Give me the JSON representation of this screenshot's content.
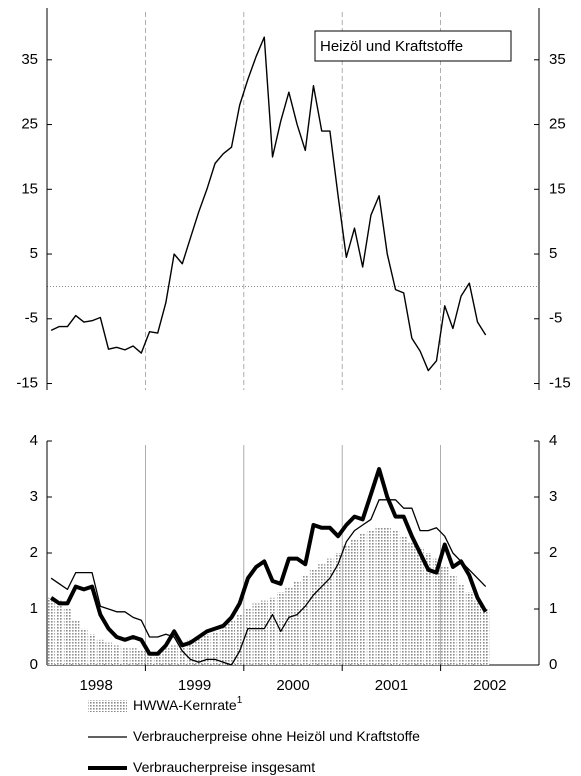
{
  "chart_data": [
    {
      "type": "line",
      "annotation": "Heizöl und Kraftstoffe",
      "x": [
        1998.042,
        1998.125,
        1998.208,
        1998.292,
        1998.375,
        1998.458,
        1998.542,
        1998.625,
        1998.708,
        1998.792,
        1998.875,
        1998.958,
        1999.042,
        1999.125,
        1999.208,
        1999.292,
        1999.375,
        1999.458,
        1999.542,
        1999.625,
        1999.708,
        1999.792,
        1999.875,
        1999.958,
        2000.042,
        2000.125,
        2000.208,
        2000.292,
        2000.375,
        2000.458,
        2000.542,
        2000.625,
        2000.708,
        2000.792,
        2000.875,
        2000.958,
        2001.042,
        2001.125,
        2001.208,
        2001.292,
        2001.375,
        2001.458,
        2001.542,
        2001.625,
        2001.708,
        2001.792,
        2001.875,
        2001.958,
        2002.042,
        2002.125,
        2002.208,
        2002.292,
        2002.375,
        2002.458
      ],
      "series": [
        {
          "color": "#000000",
          "width": 1.4,
          "values": [
            -6.8,
            -6.2,
            -6.2,
            -4.5,
            -5.5,
            -5.3,
            -4.8,
            -9.7,
            -9.4,
            -9.8,
            -9.2,
            -10.3,
            -7,
            -7.2,
            -2.5,
            5,
            3.5,
            7.5,
            11.5,
            15,
            19,
            20.5,
            21.5,
            28,
            32,
            35.5,
            38.5,
            20,
            25.5,
            30,
            25,
            21,
            31,
            24,
            24,
            14,
            4.5,
            9,
            3,
            11,
            14,
            5,
            -0.5,
            -1,
            -8,
            -10,
            -13,
            -11.5,
            -3,
            -6.5,
            -1.5,
            0.5,
            -5.5,
            -7.5
          ]
        }
      ],
      "xlim": [
        1998,
        2003
      ],
      "xgrid": [
        1999,
        2000,
        2001,
        2002
      ],
      "ylim": [
        -16,
        43
      ],
      "yticks": [
        35,
        25,
        15,
        5,
        -5,
        -15
      ],
      "y2lim": [
        -16,
        43
      ],
      "y2ticks": [
        35,
        25,
        15,
        5,
        -5,
        -15
      ],
      "zero_line": true
    },
    {
      "type": "combo",
      "x": [
        1998.042,
        1998.125,
        1998.208,
        1998.292,
        1998.375,
        1998.458,
        1998.542,
        1998.625,
        1998.708,
        1998.792,
        1998.875,
        1998.958,
        1999.042,
        1999.125,
        1999.208,
        1999.292,
        1999.375,
        1999.458,
        1999.542,
        1999.625,
        1999.708,
        1999.792,
        1999.875,
        1999.958,
        2000.042,
        2000.125,
        2000.208,
        2000.292,
        2000.375,
        2000.458,
        2000.542,
        2000.625,
        2000.708,
        2000.792,
        2000.875,
        2000.958,
        2001.042,
        2001.125,
        2001.208,
        2001.292,
        2001.375,
        2001.458,
        2001.542,
        2001.625,
        2001.708,
        2001.792,
        2001.875,
        2001.958,
        2002.042,
        2002.125,
        2002.208,
        2002.292,
        2002.375,
        2002.458
      ],
      "series": [
        {
          "name": "HWWA-Kernrate",
          "footnote": "1",
          "kind": "bar",
          "color": "#8c8c8c",
          "values": [
            1.2,
            1.15,
            1.0,
            0.8,
            0.65,
            0.55,
            0.45,
            0.4,
            0.35,
            0.3,
            0.3,
            0.25,
            0.2,
            0.2,
            0.3,
            0.35,
            0.4,
            0.45,
            0.5,
            0.55,
            0.6,
            0.7,
            0.8,
            0.9,
            1.0,
            1.1,
            1.15,
            1.2,
            1.3,
            1.4,
            1.5,
            1.6,
            1.7,
            1.8,
            1.9,
            2.0,
            2.15,
            2.25,
            2.35,
            2.4,
            2.45,
            2.45,
            2.4,
            2.3,
            2.2,
            2.1,
            2.0,
            1.9,
            1.75,
            1.6,
            1.45,
            1.3,
            1.15,
            1.0
          ]
        },
        {
          "name": "Verbraucherpreise ohne Heizöl und Kraftstoffe",
          "kind": "line",
          "color": "#000000",
          "width": 1.3,
          "values": [
            1.55,
            1.45,
            1.35,
            1.65,
            1.65,
            1.65,
            1.05,
            1.0,
            0.95,
            0.95,
            0.85,
            0.8,
            0.5,
            0.5,
            0.55,
            0.5,
            0.25,
            0.1,
            0.05,
            0.1,
            0.1,
            0.05,
            0.0,
            0.25,
            0.65,
            0.65,
            0.65,
            0.9,
            0.6,
            0.85,
            0.9,
            1.05,
            1.25,
            1.4,
            1.55,
            1.8,
            2.2,
            2.4,
            2.5,
            2.6,
            2.95,
            2.95,
            2.95,
            2.8,
            2.8,
            2.4,
            2.4,
            2.45,
            2.3,
            2.0,
            1.85,
            1.7,
            1.55,
            1.4
          ]
        },
        {
          "name": "Verbraucherpreise insgesamt",
          "kind": "line",
          "color": "#000000",
          "width": 4,
          "values": [
            1.2,
            1.1,
            1.1,
            1.4,
            1.35,
            1.4,
            0.9,
            0.65,
            0.5,
            0.45,
            0.5,
            0.45,
            0.2,
            0.2,
            0.35,
            0.6,
            0.35,
            0.4,
            0.5,
            0.6,
            0.65,
            0.7,
            0.85,
            1.1,
            1.55,
            1.75,
            1.85,
            1.5,
            1.45,
            1.9,
            1.9,
            1.8,
            2.5,
            2.45,
            2.45,
            2.3,
            2.5,
            2.65,
            2.6,
            3.05,
            3.5,
            3.0,
            2.65,
            2.65,
            2.3,
            2.0,
            1.7,
            1.65,
            2.15,
            1.75,
            1.85,
            1.6,
            1.2,
            0.95
          ]
        }
      ],
      "xlim": [
        1998,
        2003
      ],
      "xgrid": [
        1999,
        2000,
        2001,
        2002
      ],
      "xticks": [
        {
          "value": 1998.5,
          "label": "1998"
        },
        {
          "value": 1999.5,
          "label": "1999"
        },
        {
          "value": 2000.5,
          "label": "2000"
        },
        {
          "value": 2001.5,
          "label": "2001"
        },
        {
          "value": 2002.5,
          "label": "2002"
        }
      ],
      "ylim": [
        0,
        4
      ],
      "yticks": [
        0,
        1,
        2,
        3,
        4
      ],
      "y2lim": [
        0,
        4
      ],
      "y2ticks": [
        0,
        1,
        2,
        3,
        4
      ],
      "legend": "bottom"
    }
  ]
}
